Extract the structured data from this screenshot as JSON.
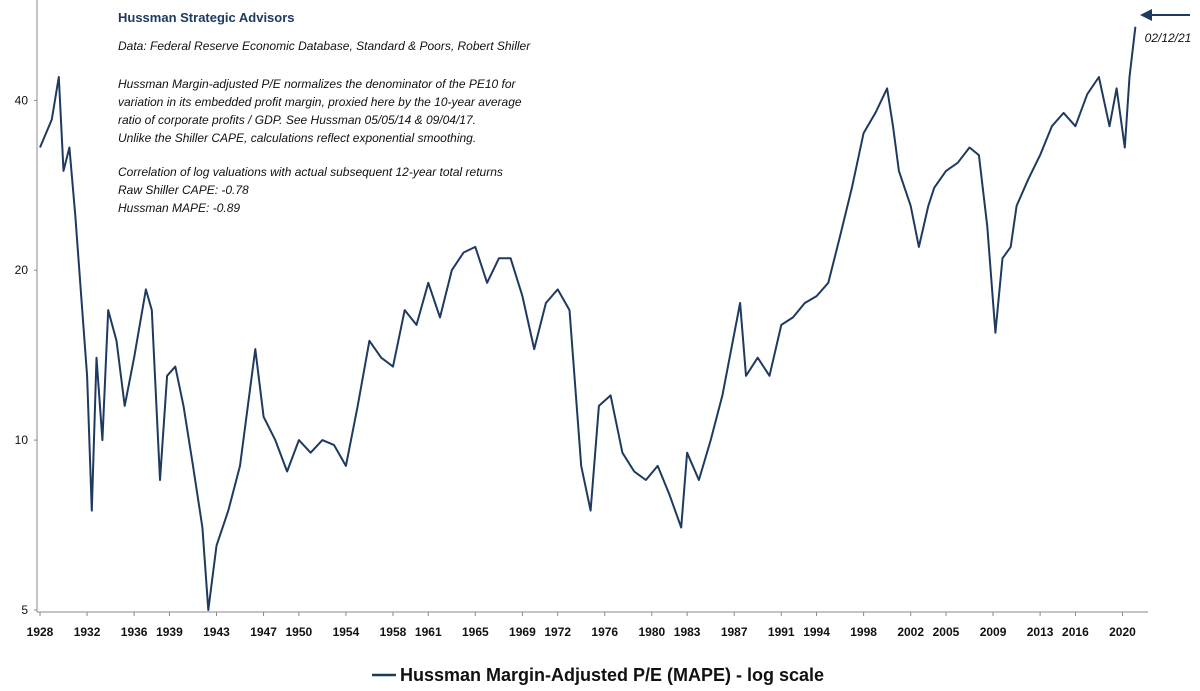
{
  "chart_data": {
    "type": "line",
    "title": "Hussman Strategic Advisors",
    "notes": [
      "Data: Federal Reserve Economic Database, Standard & Poors, Robert Shiller",
      "Hussman Margin-adjusted P/E normalizes the denominator of the PE10 for",
      "variation in its embedded profit margin, proxied here by the 10-year average",
      "ratio of corporate profits / GDP. See Hussman 05/05/14  & 09/04/17.",
      "Unlike the Shiller CAPE, calculations reflect exponential smoothing.",
      "Correlation of log valuations with actual subsequent 12-year total returns",
      "Raw Shiller CAPE: -0.78",
      "Hussman MAPE: -0.89"
    ],
    "date_annotation": "02/12/21",
    "x": [
      1928,
      1929,
      1929.6,
      1930,
      1930.5,
      1931,
      1931.5,
      1932,
      1932.4,
      1932.8,
      1933.3,
      1933.8,
      1934.5,
      1935.2,
      1936,
      1937,
      1937.5,
      1938.2,
      1938.8,
      1939.5,
      1940.2,
      1941,
      1941.8,
      1942.3,
      1943,
      1944,
      1945,
      1946.3,
      1947,
      1948,
      1949,
      1950,
      1951,
      1952,
      1953,
      1954,
      1955,
      1956,
      1957,
      1958,
      1959,
      1960,
      1961,
      1962,
      1963,
      1964,
      1965,
      1966,
      1967,
      1968,
      1969,
      1970,
      1971,
      1972,
      1973,
      1974,
      1974.8,
      1975.5,
      1976.5,
      1977.5,
      1978.5,
      1979.5,
      1980.5,
      1981.5,
      1982.5,
      1983,
      1984,
      1985,
      1986,
      1987.5,
      1988,
      1989,
      1990,
      1991,
      1992,
      1993,
      1994,
      1995,
      1996,
      1997,
      1998,
      1999,
      2000,
      2000.5,
      2001,
      2002,
      2002.7,
      2003.5,
      2004,
      2005,
      2006,
      2007,
      2007.8,
      2008.5,
      2009.2,
      2009.8,
      2010.5,
      2011,
      2012,
      2013,
      2014,
      2015,
      2016,
      2017,
      2018,
      2018.9,
      2019.5,
      2020.2,
      2020.6,
      2021.1
    ],
    "series": [
      {
        "name": "Hussman Margin-Adjusted P/E (MAPE) - log scale",
        "color": "#1f3a60",
        "values": [
          33,
          37,
          44,
          30,
          33,
          25,
          18,
          13,
          7.5,
          14,
          10,
          17,
          15,
          11.5,
          14,
          18.5,
          17,
          8.5,
          13,
          13.5,
          11.5,
          9,
          7,
          5,
          6.5,
          7.5,
          9,
          14.5,
          11,
          10,
          8.8,
          10,
          9.5,
          10,
          9.8,
          9,
          11.5,
          15,
          14,
          13.5,
          17,
          16,
          19,
          16.5,
          20,
          21.5,
          22,
          19,
          21,
          21,
          18,
          14.5,
          17.5,
          18.5,
          17,
          9,
          7.5,
          11.5,
          12,
          9.5,
          8.8,
          8.5,
          9,
          8,
          7,
          9.5,
          8.5,
          10,
          12,
          17.5,
          13,
          14,
          13,
          16,
          16.5,
          17.5,
          18,
          19,
          23,
          28,
          35,
          38,
          42,
          36,
          30,
          26,
          22,
          26,
          28,
          30,
          31,
          33,
          32,
          24,
          15.5,
          21,
          22,
          26,
          29,
          32,
          36,
          38,
          36,
          41,
          44,
          36,
          42,
          33,
          44,
          54
        ]
      }
    ],
    "xlim": [
      1928,
      2022
    ],
    "xticks": [
      1928,
      1932,
      1936,
      1939,
      1943,
      1947,
      1950,
      1954,
      1958,
      1961,
      1965,
      1969,
      1972,
      1976,
      1980,
      1983,
      1987,
      1991,
      1994,
      1998,
      2002,
      2005,
      2009,
      2013,
      2016,
      2020
    ],
    "ylim": [
      5,
      60
    ],
    "yticks": [
      5,
      10,
      20,
      40
    ],
    "log_scale_y": true,
    "grid": false
  }
}
